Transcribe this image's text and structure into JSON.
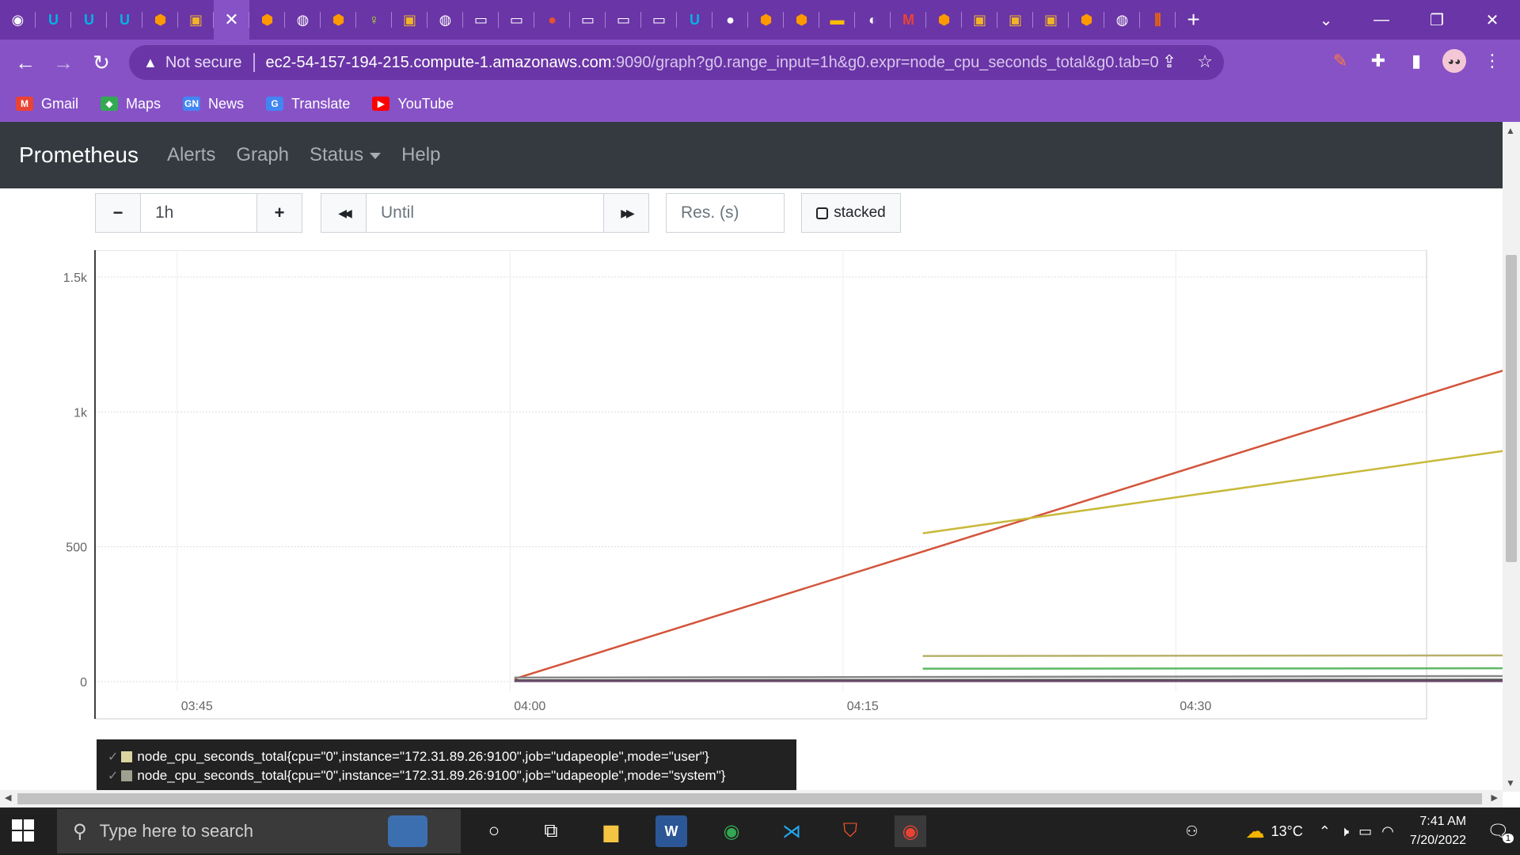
{
  "tabs": [
    {
      "icon": "circle-icon",
      "color": "#ffffff",
      "glyph": "◉"
    },
    {
      "icon": "udacity-icon",
      "color": "#02b3e4",
      "glyph": "U"
    },
    {
      "icon": "udacity-icon",
      "color": "#02b3e4",
      "glyph": "U"
    },
    {
      "icon": "udacity-icon",
      "color": "#02b3e4",
      "glyph": "U"
    },
    {
      "icon": "aws-box-icon",
      "color": "#ff9900",
      "glyph": "⬢"
    },
    {
      "icon": "package-icon",
      "color": "#f0b429",
      "glyph": "▣"
    },
    {
      "icon": "close-icon",
      "color": "#ffffff",
      "glyph": "✕",
      "active": true
    },
    {
      "icon": "aws-box-icon",
      "color": "#ff9900",
      "glyph": "⬢"
    },
    {
      "icon": "globe-icon",
      "color": "#ffffff",
      "glyph": "◍"
    },
    {
      "icon": "aws-box-icon",
      "color": "#ff9900",
      "glyph": "⬢"
    },
    {
      "icon": "key-icon",
      "color": "#b5e61d",
      "glyph": "♀"
    },
    {
      "icon": "package-icon",
      "color": "#f0b429",
      "glyph": "▣"
    },
    {
      "icon": "globe-icon",
      "color": "#ffffff",
      "glyph": "◍"
    },
    {
      "icon": "terminal-icon",
      "color": "#ffffff",
      "glyph": "▭"
    },
    {
      "icon": "terminal-icon",
      "color": "#ffffff",
      "glyph": "▭"
    },
    {
      "icon": "prometheus-icon",
      "color": "#e6522c",
      "glyph": "●"
    },
    {
      "icon": "terminal-icon",
      "color": "#ffffff",
      "glyph": "▭"
    },
    {
      "icon": "terminal-icon",
      "color": "#ffffff",
      "glyph": "▭"
    },
    {
      "icon": "terminal-icon",
      "color": "#ffffff",
      "glyph": "▭"
    },
    {
      "icon": "udacity-icon",
      "color": "#02b3e4",
      "glyph": "U"
    },
    {
      "icon": "drop-icon",
      "color": "#ffffff",
      "glyph": "●"
    },
    {
      "icon": "aws-box-icon",
      "color": "#ff9900",
      "glyph": "⬢"
    },
    {
      "icon": "aws-box-icon",
      "color": "#ff9900",
      "glyph": "⬢"
    },
    {
      "icon": "slides-icon",
      "color": "#fbbc04",
      "glyph": "▬"
    },
    {
      "icon": "github-icon",
      "color": "#ffffff",
      "glyph": "◐"
    },
    {
      "icon": "gmail-icon",
      "color": "#ea4335",
      "glyph": "M"
    },
    {
      "icon": "aws-box-icon",
      "color": "#ff9900",
      "glyph": "⬢"
    },
    {
      "icon": "package-icon",
      "color": "#f0b429",
      "glyph": "▣"
    },
    {
      "icon": "package-icon",
      "color": "#f0b429",
      "glyph": "▣"
    },
    {
      "icon": "package-icon",
      "color": "#f0b429",
      "glyph": "▣"
    },
    {
      "icon": "aws-box-icon",
      "color": "#ff9900",
      "glyph": "⬢"
    },
    {
      "icon": "globe-icon",
      "color": "#ffffff",
      "glyph": "◍"
    },
    {
      "icon": "grafana-icon",
      "color": "#f46800",
      "glyph": "⫼"
    }
  ],
  "address": {
    "not_secure": "Not secure",
    "host": "ec2-54-157-194-215.compute-1.amazonaws.com",
    "path": ":9090/graph?g0.range_input=1h&g0.expr=node_cpu_seconds_total&g0.tab=0"
  },
  "bookmarks": [
    {
      "label": "Gmail",
      "icon": "gmail-icon",
      "color": "#ea4335",
      "glyph": "M"
    },
    {
      "label": "Maps",
      "icon": "maps-icon",
      "color": "#34a853",
      "glyph": "◆"
    },
    {
      "label": "News",
      "icon": "news-icon",
      "color": "#4285f4",
      "glyph": "GN"
    },
    {
      "label": "Translate",
      "icon": "translate-icon",
      "color": "#4285f4",
      "glyph": "G"
    },
    {
      "label": "YouTube",
      "icon": "youtube-icon",
      "color": "#ff0000",
      "glyph": "▶"
    }
  ],
  "navbar": {
    "brand": "Prometheus",
    "links": [
      "Alerts",
      "Graph",
      "Status",
      "Help"
    ]
  },
  "controls": {
    "minus": "−",
    "range": "1h",
    "plus": "+",
    "back": "◀◀",
    "until_placeholder": "Until",
    "forward": "▶▶",
    "res_placeholder": "Res. (s)",
    "stacked": "stacked"
  },
  "chart_data": {
    "type": "line",
    "x_ticks": [
      "03:45",
      "04:00",
      "04:15",
      "04:30"
    ],
    "y_ticks": [
      "0",
      "500",
      "1k",
      "1.5k"
    ],
    "ylim": [
      -30,
      1600
    ],
    "xlim_minutes": [
      -3.7,
      56.3
    ],
    "grid": true,
    "series": [
      {
        "color": "#d3543a",
        "points": [
          [
            0.2,
            10
          ],
          [
            56.3,
            1450
          ]
        ]
      },
      {
        "color": "#c8b93a",
        "points": [
          [
            18.6,
            550
          ],
          [
            56.3,
            990
          ]
        ]
      },
      {
        "color": "#b7b06a",
        "points": [
          [
            18.6,
            95
          ],
          [
            56.3,
            98
          ]
        ]
      },
      {
        "color": "#5db865",
        "points": [
          [
            18.6,
            48
          ],
          [
            56.3,
            50
          ]
        ]
      },
      {
        "color": "#888888",
        "points": [
          [
            0.2,
            15
          ],
          [
            56.3,
            22
          ]
        ]
      },
      {
        "color": "#555555",
        "points": [
          [
            0.2,
            5
          ],
          [
            56.3,
            8
          ]
        ]
      },
      {
        "color": "#6a4a6a",
        "points": [
          [
            0.2,
            2
          ],
          [
            56.3,
            2
          ]
        ]
      }
    ]
  },
  "legend": [
    {
      "check": "✓",
      "color": "#d8d5a0",
      "label": "node_cpu_seconds_total{cpu=\"0\",instance=\"172.31.89.26:9100\",job=\"udapeople\",mode=\"user\"}"
    },
    {
      "check": "✓",
      "color": "#a0a090",
      "label": "node_cpu_seconds_total{cpu=\"0\",instance=\"172.31.89.26:9100\",job=\"udapeople\",mode=\"system\"}"
    }
  ],
  "taskbar": {
    "search_placeholder": "Type here to search",
    "temperature": "13°C",
    "time": "7:41 AM",
    "date": "7/20/2022",
    "notifications": "1"
  }
}
